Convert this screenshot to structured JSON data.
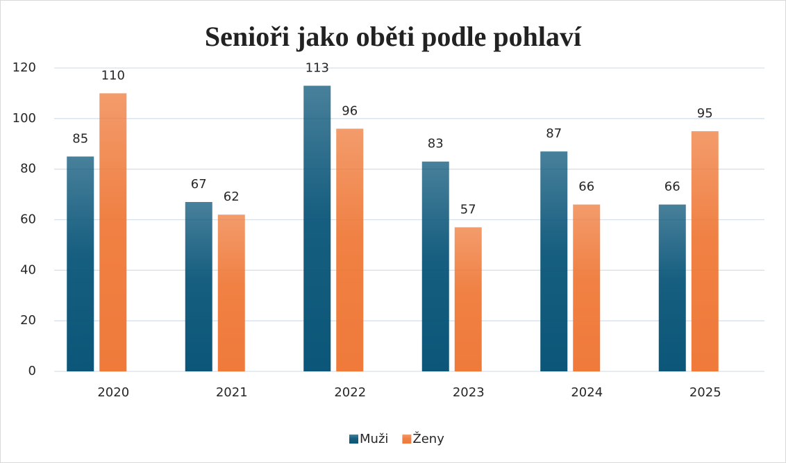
{
  "chart_data": {
    "type": "bar",
    "title": "Senioři jako oběti podle pohlaví",
    "categories": [
      "2020",
      "2021",
      "2022",
      "2023",
      "2024",
      "2025"
    ],
    "series": [
      {
        "name": "Muži",
        "color": "#0b5679",
        "values": [
          85,
          67,
          113,
          83,
          87,
          66
        ]
      },
      {
        "name": "Ženy",
        "color": "#ef7a3a",
        "values": [
          110,
          62,
          96,
          57,
          66,
          95
        ]
      }
    ],
    "ylim": [
      0,
      120
    ],
    "yticks": [
      0,
      20,
      40,
      60,
      80,
      100,
      120
    ],
    "grid": true,
    "legend": "bottom"
  }
}
